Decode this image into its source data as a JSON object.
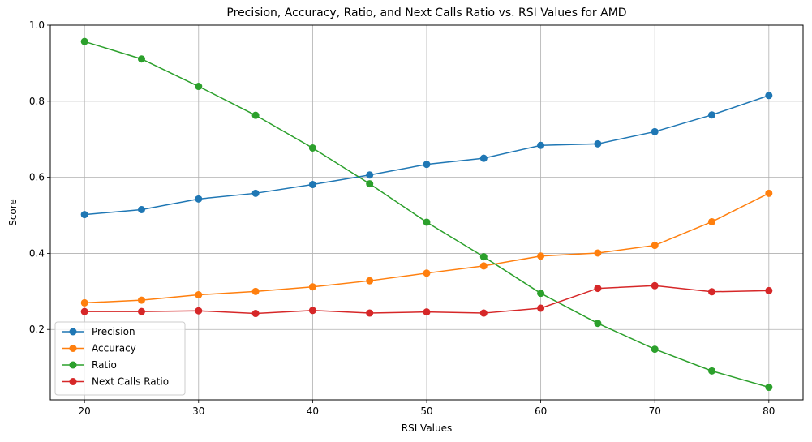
{
  "chart_data": {
    "type": "line",
    "title": "Precision, Accuracy, Ratio, and Next Calls Ratio vs. RSI Values for AMD",
    "xlabel": "RSI Values",
    "ylabel": "Score",
    "x": [
      20,
      25,
      30,
      35,
      40,
      45,
      50,
      55,
      60,
      65,
      70,
      75,
      80
    ],
    "xlim": [
      17,
      83
    ],
    "ylim": [
      0.015,
      1.0
    ],
    "x_ticks": [
      20,
      30,
      40,
      50,
      60,
      70,
      80
    ],
    "y_ticks": [
      0.2,
      0.4,
      0.6,
      0.8,
      1.0
    ],
    "y_tick_labels": [
      "0.2",
      "0.4",
      "0.6",
      "0.8",
      "1.0"
    ],
    "grid": true,
    "legend_position": "lower-left",
    "series": [
      {
        "name": "Precision",
        "color": "#1f77b4",
        "values": [
          0.502,
          0.515,
          0.543,
          0.558,
          0.581,
          0.606,
          0.634,
          0.65,
          0.684,
          0.688,
          0.72,
          0.764,
          0.815
        ]
      },
      {
        "name": "Accuracy",
        "color": "#ff7f0e",
        "values": [
          0.27,
          0.277,
          0.291,
          0.3,
          0.312,
          0.328,
          0.348,
          0.367,
          0.393,
          0.401,
          0.421,
          0.483,
          0.558
        ]
      },
      {
        "name": "Ratio",
        "color": "#2ca02c",
        "values": [
          0.957,
          0.911,
          0.839,
          0.763,
          0.677,
          0.583,
          0.482,
          0.391,
          0.295,
          0.216,
          0.148,
          0.091,
          0.048
        ]
      },
      {
        "name": "Next Calls Ratio",
        "color": "#d62728",
        "values": [
          0.247,
          0.247,
          0.249,
          0.242,
          0.25,
          0.243,
          0.246,
          0.243,
          0.256,
          0.308,
          0.315,
          0.299,
          0.302
        ]
      }
    ]
  }
}
